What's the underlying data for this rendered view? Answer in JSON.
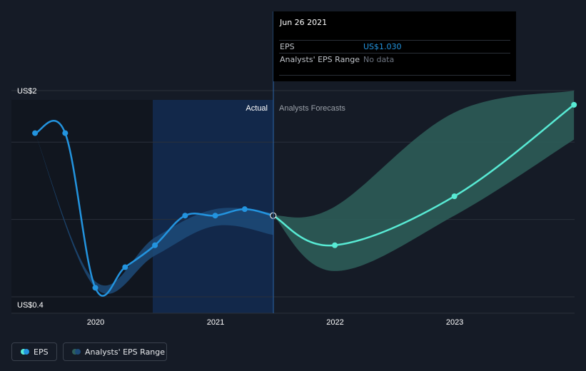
{
  "tooltip": {
    "date": "Jun 26 2021",
    "rows": [
      {
        "label": "EPS",
        "value": "US$1.030",
        "value_color": "#2394df"
      },
      {
        "label": "Analysts' EPS Range",
        "value": "No data",
        "value_color": "#6d7480"
      }
    ]
  },
  "legend": {
    "eps_label": "EPS",
    "range_label": "Analysts' EPS Range"
  },
  "chart_data": {
    "type": "line",
    "ylim": [
      0.4,
      2.0
    ],
    "y_tick_labels": [
      "US$2",
      "US$0.4"
    ],
    "x_tick_labels": [
      "2020",
      "2021",
      "2022",
      "2023"
    ],
    "section_labels": {
      "actual": "Actual",
      "forecast": "Analysts Forecasts"
    },
    "grid": true,
    "series": [
      {
        "name": "EPS",
        "x": [
          "2019-06-30",
          "2019-09-30",
          "2019-12-31",
          "2020-03-31",
          "2020-06-30",
          "2020-09-30",
          "2020-12-31",
          "2021-03-31",
          "2021-06-26"
        ],
        "values": [
          1.67,
          1.67,
          0.47,
          0.63,
          0.8,
          1.03,
          1.03,
          1.08,
          1.03
        ],
        "color": "#2394df"
      },
      {
        "name": "EPS forecast",
        "x": [
          "2021-06-26",
          "2021-12-31",
          "2022-12-31",
          "2023-12-31"
        ],
        "values": [
          1.03,
          0.8,
          1.18,
          1.89
        ],
        "color": "#58ead4"
      }
    ],
    "range": {
      "name": "Analysts' EPS Range",
      "historical": {
        "x": [
          "2019-06-30",
          "2019-12-31",
          "2020-06-30",
          "2020-12-31",
          "2021-06-26"
        ],
        "low": [
          1.67,
          0.47,
          0.72,
          0.95,
          0.88
        ],
        "high": [
          1.67,
          0.52,
          0.86,
          1.08,
          1.05
        ]
      },
      "forecast": {
        "x": [
          "2021-06-26",
          "2021-12-31",
          "2022-12-31",
          "2023-12-31"
        ],
        "low": [
          1.03,
          0.6,
          1.03,
          1.62
        ],
        "high": [
          1.03,
          1.1,
          1.83,
          2.0
        ]
      },
      "colors": {
        "historical": "#1d4a78",
        "forecast": "#2e5f5b"
      }
    }
  }
}
